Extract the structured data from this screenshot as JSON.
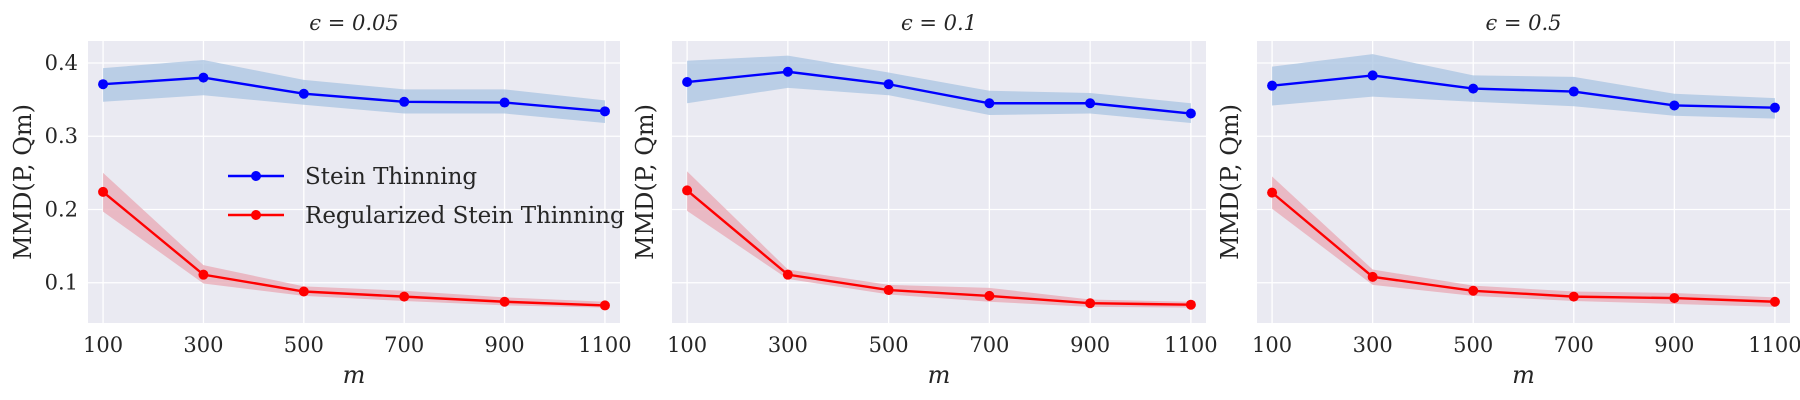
{
  "chart_data": [
    {
      "type": "line",
      "title": "ϵ = 0.05",
      "xlabel": "m",
      "ylabel": "MMD(P, Qm)",
      "x": [
        100,
        300,
        500,
        700,
        900,
        1100
      ],
      "xticks": [
        "100",
        "300",
        "500",
        "700",
        "900",
        "1100"
      ],
      "yticks": [
        "0.1",
        "0.2",
        "0.3",
        "0.4"
      ],
      "ylim": [
        0.045,
        0.43
      ],
      "grid": true,
      "legend": "center",
      "series": [
        {
          "name": "Stein Thinning",
          "color": "#0000ff",
          "band_color": "#aac4e2",
          "values": [
            0.371,
            0.38,
            0.358,
            0.347,
            0.346,
            0.334
          ],
          "lower": [
            0.347,
            0.356,
            0.343,
            0.331,
            0.331,
            0.318
          ],
          "upper": [
            0.393,
            0.404,
            0.377,
            0.364,
            0.364,
            0.349
          ]
        },
        {
          "name": "Regularized Stein Thinning",
          "color": "#ff0000",
          "band_color": "#e8a8b4",
          "values": [
            0.224,
            0.111,
            0.088,
            0.081,
            0.074,
            0.069
          ],
          "lower": [
            0.197,
            0.099,
            0.082,
            0.075,
            0.069,
            0.066
          ],
          "upper": [
            0.25,
            0.124,
            0.095,
            0.089,
            0.08,
            0.074
          ]
        }
      ]
    },
    {
      "type": "line",
      "title": "ϵ = 0.1",
      "xlabel": "m",
      "ylabel": "MMD(P, Qm)",
      "x": [
        100,
        300,
        500,
        700,
        900,
        1100
      ],
      "xticks": [
        "100",
        "300",
        "500",
        "700",
        "900",
        "1100"
      ],
      "yticks": [],
      "ylim": [
        0.045,
        0.43
      ],
      "grid": true,
      "series": [
        {
          "name": "Stein Thinning",
          "color": "#0000ff",
          "band_color": "#aac4e2",
          "values": [
            0.374,
            0.388,
            0.371,
            0.345,
            0.345,
            0.331
          ],
          "lower": [
            0.345,
            0.366,
            0.356,
            0.329,
            0.331,
            0.318
          ],
          "upper": [
            0.403,
            0.41,
            0.387,
            0.362,
            0.359,
            0.345
          ]
        },
        {
          "name": "Regularized Stein Thinning",
          "color": "#ff0000",
          "band_color": "#e8a8b4",
          "values": [
            0.226,
            0.111,
            0.09,
            0.082,
            0.072,
            0.07
          ],
          "lower": [
            0.198,
            0.105,
            0.084,
            0.074,
            0.067,
            0.066
          ],
          "upper": [
            0.252,
            0.118,
            0.097,
            0.093,
            0.077,
            0.074
          ]
        }
      ]
    },
    {
      "type": "line",
      "title": "ϵ = 0.5",
      "xlabel": "m",
      "ylabel": "MMD(P, Qm)",
      "x": [
        100,
        300,
        500,
        700,
        900,
        1100
      ],
      "xticks": [
        "100",
        "300",
        "500",
        "700",
        "900",
        "1100"
      ],
      "yticks": [],
      "ylim": [
        0.045,
        0.43
      ],
      "grid": true,
      "series": [
        {
          "name": "Stein Thinning",
          "color": "#0000ff",
          "band_color": "#aac4e2",
          "values": [
            0.369,
            0.383,
            0.365,
            0.361,
            0.342,
            0.339
          ],
          "lower": [
            0.342,
            0.354,
            0.347,
            0.341,
            0.328,
            0.324
          ],
          "upper": [
            0.395,
            0.412,
            0.383,
            0.381,
            0.358,
            0.352
          ]
        },
        {
          "name": "Regularized Stein Thinning",
          "color": "#ff0000",
          "band_color": "#e8a8b4",
          "values": [
            0.223,
            0.108,
            0.089,
            0.081,
            0.079,
            0.074
          ],
          "lower": [
            0.201,
            0.097,
            0.082,
            0.075,
            0.071,
            0.067
          ],
          "upper": [
            0.245,
            0.118,
            0.096,
            0.088,
            0.086,
            0.08
          ]
        }
      ]
    }
  ]
}
